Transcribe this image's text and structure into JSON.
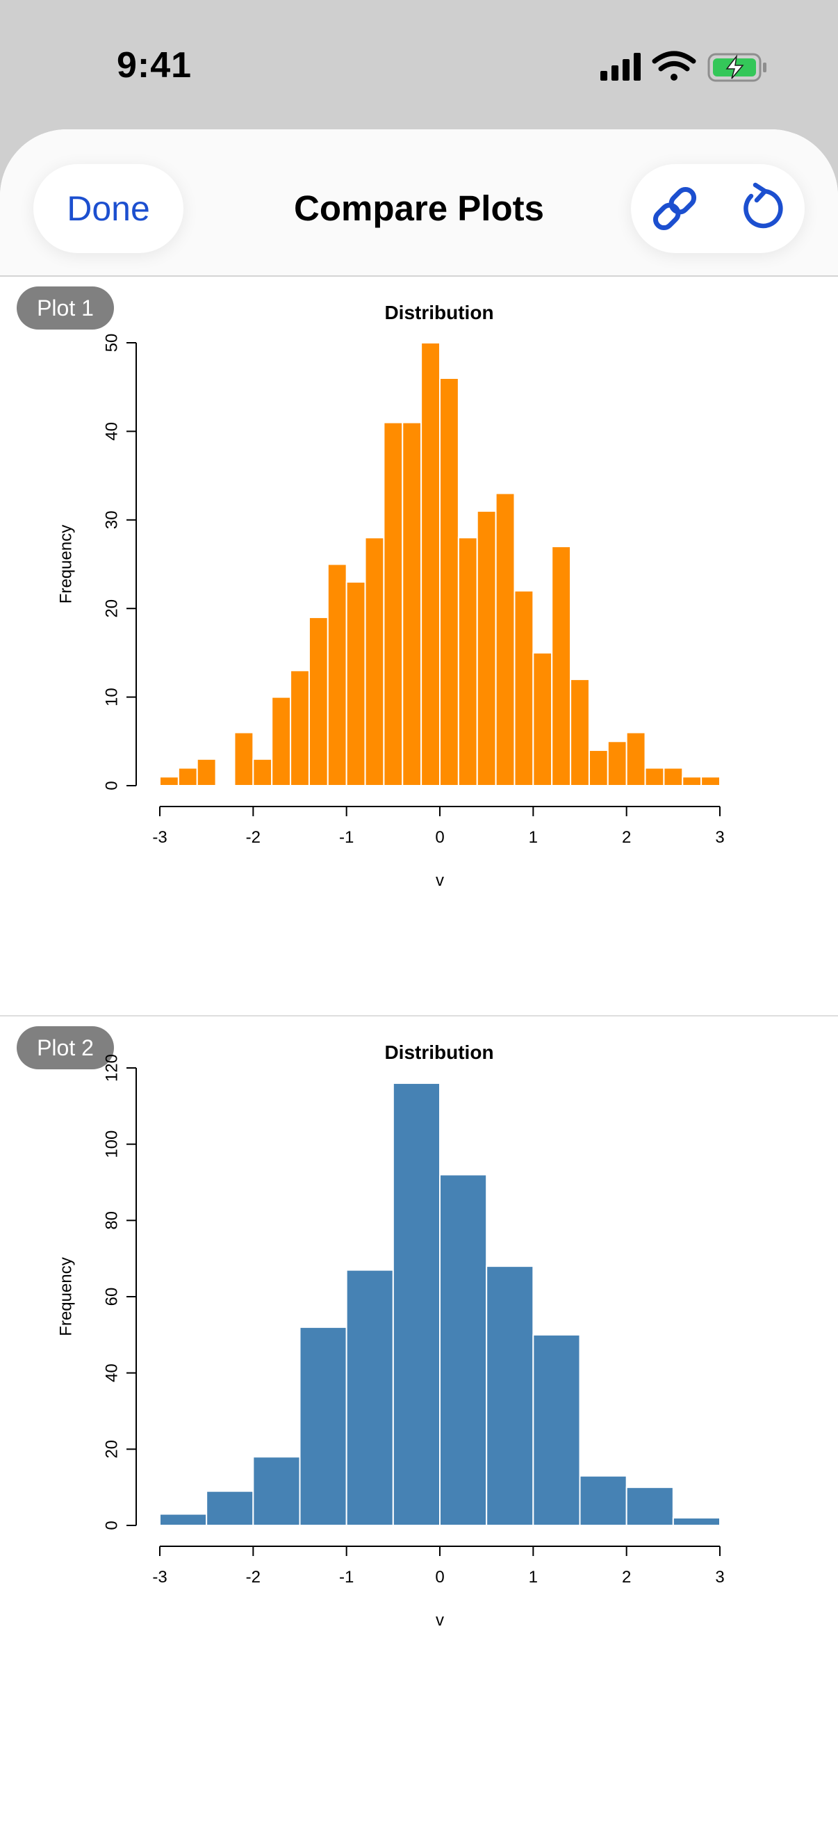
{
  "status_bar": {
    "time": "9:41",
    "icons": [
      "signal-icon",
      "wifi-icon",
      "battery-charging-icon"
    ],
    "battery_color": "#34c759"
  },
  "nav": {
    "done_label": "Done",
    "title": "Compare Plots",
    "icons": [
      "link-icon",
      "reset-icon"
    ],
    "accent": "#1c4fcf"
  },
  "plots": [
    {
      "badge": "Plot 1",
      "chart_data": {
        "type": "bar",
        "title": "Distribution",
        "xlabel": "v",
        "ylabel": "Frequency",
        "xlim": [
          -3,
          3
        ],
        "ylim": [
          0,
          50
        ],
        "xticks": [
          -3,
          -2,
          -1,
          0,
          1,
          2,
          3
        ],
        "yticks": [
          0,
          10,
          20,
          30,
          40,
          50
        ],
        "bin_width": 0.2,
        "bins_start": [
          -3.0,
          -2.8,
          -2.6,
          -2.4,
          -2.2,
          -2.0,
          -1.8,
          -1.6,
          -1.4,
          -1.2,
          -1.0,
          -0.8,
          -0.6,
          -0.4,
          -0.2,
          0.0,
          0.2,
          0.4,
          0.6,
          0.8,
          1.0,
          1.2,
          1.4,
          1.6,
          1.8,
          2.0,
          2.2,
          2.4,
          2.6,
          2.8
        ],
        "values": [
          1,
          2,
          3,
          0,
          6,
          3,
          10,
          13,
          19,
          25,
          23,
          28,
          41,
          41,
          50,
          46,
          28,
          31,
          33,
          22,
          15,
          27,
          12,
          4,
          5,
          6,
          2,
          2,
          1,
          1
        ],
        "color": "#ff8c00",
        "grid": false
      }
    },
    {
      "badge": "Plot 2",
      "chart_data": {
        "type": "bar",
        "title": "Distribution",
        "xlabel": "v",
        "ylabel": "Frequency",
        "xlim": [
          -3,
          3
        ],
        "ylim": [
          0,
          120
        ],
        "xticks": [
          -3,
          -2,
          -1,
          0,
          1,
          2,
          3
        ],
        "yticks": [
          0,
          20,
          40,
          60,
          80,
          100,
          120
        ],
        "bin_width": 0.5,
        "bins_start": [
          -3.0,
          -2.5,
          -2.0,
          -1.5,
          -1.0,
          -0.5,
          0.0,
          0.5,
          1.0,
          1.5,
          2.0,
          2.5
        ],
        "values": [
          3,
          9,
          18,
          52,
          67,
          116,
          92,
          68,
          50,
          13,
          10,
          2
        ],
        "color": "#4682b4",
        "grid": false
      }
    }
  ]
}
